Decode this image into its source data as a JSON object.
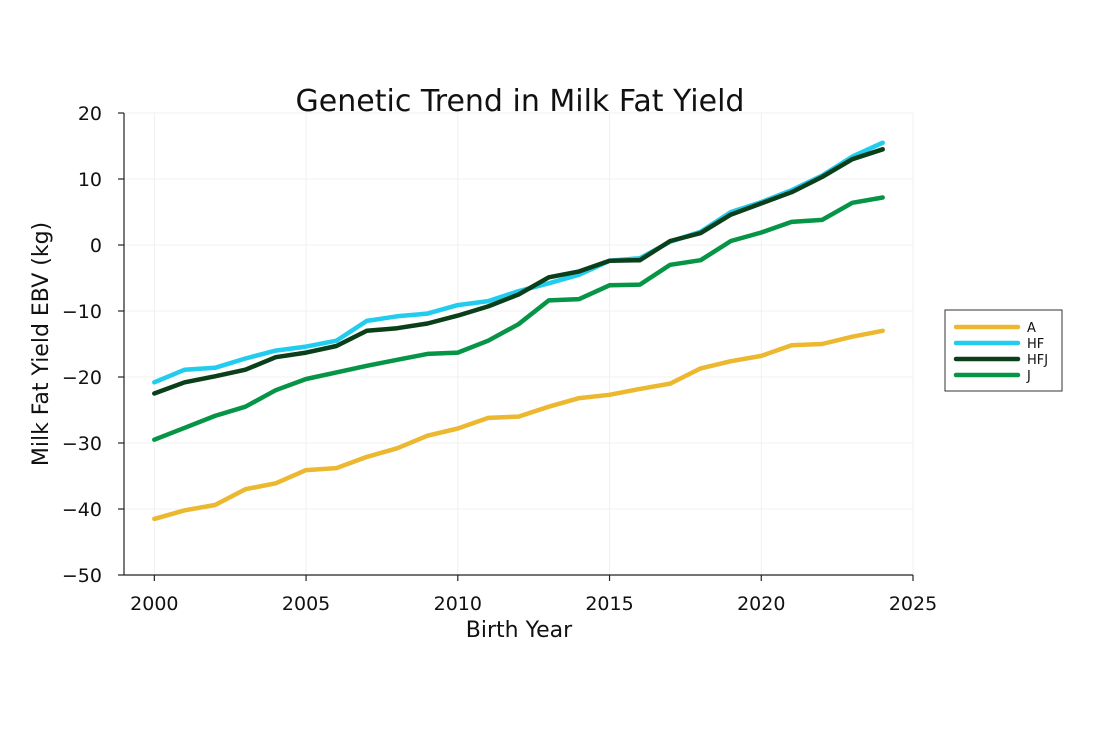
{
  "chart_data": {
    "type": "line",
    "title": "Genetic Trend in Milk Fat Yield",
    "xlabel": "Birth Year",
    "ylabel": "Milk Fat Yield EBV (kg)",
    "xlim": [
      1999,
      2025
    ],
    "ylim": [
      -50,
      20
    ],
    "xticks": [
      2000,
      2005,
      2010,
      2015,
      2020,
      2025
    ],
    "xtick_labels": [
      "2000",
      "2005",
      "2010",
      "2015",
      "2020",
      "2025"
    ],
    "yticks": [
      -50,
      -40,
      -30,
      -20,
      -10,
      0,
      10,
      20
    ],
    "ytick_labels": [
      "−50",
      "−40",
      "−30",
      "−20",
      "−10",
      "0",
      "10",
      "20"
    ],
    "grid": true,
    "legend_position": "right",
    "x": [
      2000,
      2001,
      2002,
      2003,
      2004,
      2005,
      2006,
      2007,
      2008,
      2009,
      2010,
      2011,
      2012,
      2013,
      2014,
      2015,
      2016,
      2017,
      2018,
      2019,
      2020,
      2021,
      2022,
      2023,
      2024
    ],
    "series": [
      {
        "name": "A",
        "color": "#EBB830",
        "values": [
          -41.5,
          -40.2,
          -39.4,
          -37.0,
          -36.1,
          -34.1,
          -33.8,
          -32.1,
          -30.8,
          -28.9,
          -27.8,
          -26.2,
          -26.0,
          -24.5,
          -23.2,
          -22.7,
          -21.8,
          -21.0,
          -18.7,
          -17.6,
          -16.8,
          -15.2,
          -15.0,
          -13.9,
          -13.0
        ]
      },
      {
        "name": "HF",
        "color": "#22CCEE",
        "values": [
          -20.8,
          -18.9,
          -18.6,
          -17.2,
          -16.0,
          -15.4,
          -14.5,
          -11.5,
          -10.8,
          -10.4,
          -9.1,
          -8.5,
          -7.0,
          -5.8,
          -4.5,
          -2.4,
          -2.0,
          0.5,
          2.0,
          5.0,
          6.5,
          8.3,
          10.5,
          13.4,
          15.5
        ]
      },
      {
        "name": "HFJ",
        "color": "#0A3F1A",
        "values": [
          -22.5,
          -20.8,
          -19.9,
          -18.9,
          -17.0,
          -16.3,
          -15.3,
          -13.0,
          -12.6,
          -11.9,
          -10.7,
          -9.3,
          -7.5,
          -4.9,
          -4.0,
          -2.4,
          -2.3,
          0.6,
          1.8,
          4.6,
          6.3,
          8.0,
          10.3,
          13.0,
          14.5
        ]
      },
      {
        "name": "J",
        "color": "#069447",
        "values": [
          -29.5,
          -27.7,
          -25.9,
          -24.5,
          -22.0,
          -20.3,
          -19.3,
          -18.3,
          -17.4,
          -16.5,
          -16.3,
          -14.5,
          -12.0,
          -8.4,
          -8.2,
          -6.1,
          -6.0,
          -3.0,
          -2.3,
          0.6,
          1.9,
          3.5,
          3.8,
          6.4,
          7.2
        ]
      }
    ]
  }
}
